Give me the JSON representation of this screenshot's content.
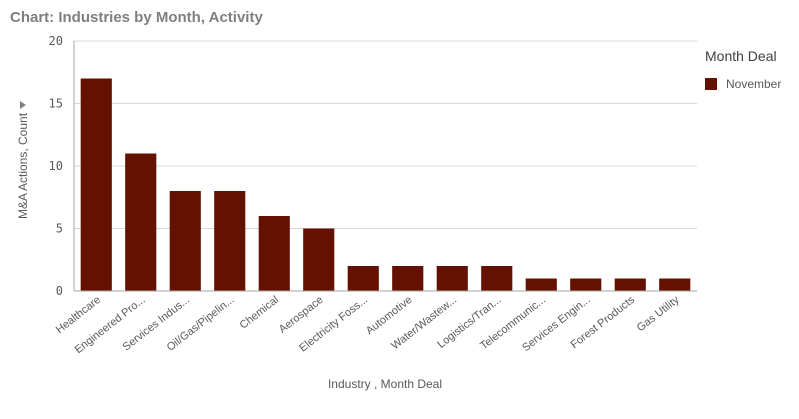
{
  "header": {
    "title": "Chart: Industries by Month, Activity"
  },
  "legend": {
    "title": "Month Deal",
    "items": [
      {
        "label": "November",
        "color": "#651100"
      }
    ]
  },
  "colors": {
    "bar": "#651100",
    "grid": "#d9d9d9",
    "axis": "#a6a6a6"
  },
  "chart_data": {
    "type": "bar",
    "title": "Chart: Industries by Month, Activity",
    "xlabel": "Industry , Month Deal",
    "ylabel": "M&A Actions, Count",
    "ylim": [
      0,
      20
    ],
    "yticks": [
      0,
      5,
      10,
      15,
      20
    ],
    "grid": true,
    "legend_position": "right",
    "categories": [
      "Healthcare",
      "Engineered Pro...",
      "Services Indus...",
      "Oil/Gas/Pipelin...",
      "Chemical",
      "Aerospace",
      "Electricity Foss...",
      "Automotive",
      "Water/Wastew...",
      "Logistics/Tran...",
      "Telecommunic...",
      "Services Engin...",
      "Forest Products",
      "Gas Utility"
    ],
    "series": [
      {
        "name": "November",
        "values": [
          17,
          11,
          8,
          8,
          6,
          5,
          2,
          2,
          2,
          2,
          1,
          1,
          1,
          1
        ]
      }
    ]
  }
}
